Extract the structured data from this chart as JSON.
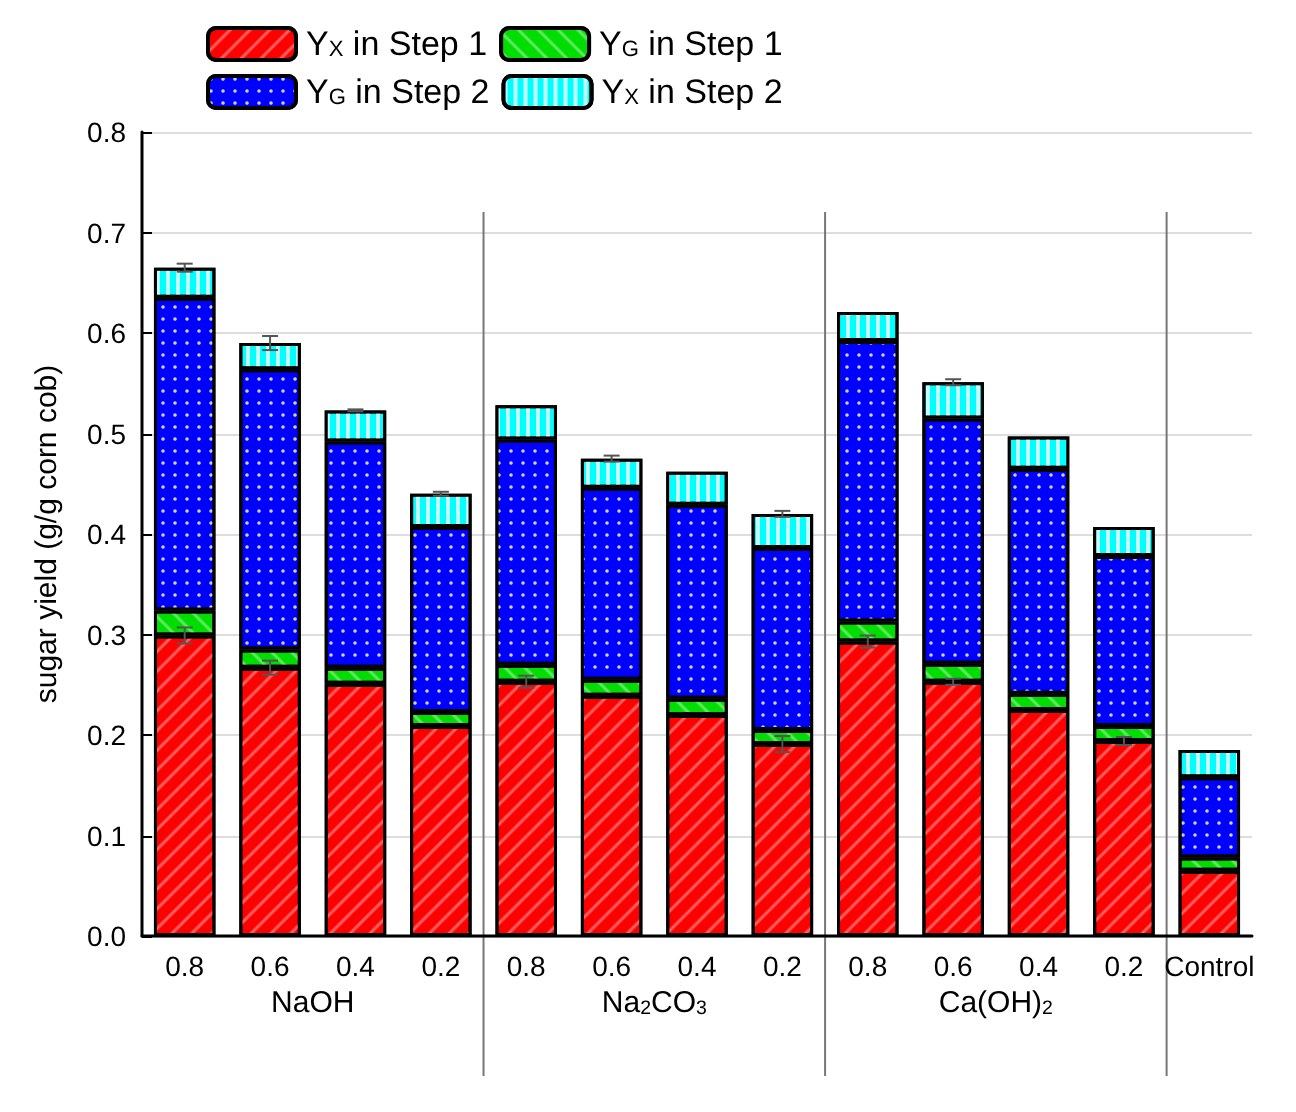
{
  "chart_data": {
    "type": "bar",
    "stacked": true,
    "ylabel": "sugar yield (g/g corn cob)",
    "categories": [
      "0.8",
      "0.6",
      "0.4",
      "0.2",
      "0.8",
      "0.6",
      "0.4",
      "0.2",
      "0.8",
      "0.6",
      "0.4",
      "0.2",
      "Control"
    ],
    "annotations": [
      "NaOH",
      "Na$_{2}$CO$_{3}$",
      "Ca(OH)$_{2}$"
    ],
    "series": [
      {
        "name": "Y$_{X}$ in Step 1",
        "color": "#ff0000",
        "values": [
          0.299,
          0.267,
          0.251,
          0.209,
          0.253,
          0.239,
          0.22,
          0.191,
          0.293,
          0.253,
          0.225,
          0.194,
          0.065
        ],
        "errors": [
          0.008,
          0.007,
          null,
          null,
          0.006,
          null,
          null,
          0.008,
          0.006,
          0.003,
          null,
          0.004,
          null
        ]
      },
      {
        "name": "Y$_{G}$ in Step 1",
        "color": "#00dd00",
        "values": [
          0.025,
          0.018,
          0.016,
          0.014,
          0.017,
          0.016,
          0.016,
          0.014,
          0.02,
          0.018,
          0.016,
          0.015,
          0.013
        ]
      },
      {
        "name": "Y$_{G}$ in Step 2",
        "color": "#0000ff",
        "values": [
          0.311,
          0.279,
          0.225,
          0.184,
          0.224,
          0.191,
          0.193,
          0.181,
          0.279,
          0.244,
          0.224,
          0.169,
          0.08
        ]
      },
      {
        "name": "Y$_{X}$ in Step 2",
        "color": "#00ffff",
        "values": [
          0.03,
          0.026,
          0.031,
          0.033,
          0.034,
          0.029,
          0.033,
          0.034,
          0.029,
          0.036,
          0.032,
          0.029,
          0.027
        ],
        "errors": [
          0.004,
          0.007,
          0.001,
          0.002,
          null,
          0.003,
          null,
          0.003,
          null,
          0.003,
          null,
          null,
          null
        ]
      }
    ],
    "ylim": [
      0,
      0.8
    ],
    "yticks": [
      {
        "value": 0,
        "label": "0.0"
      },
      {
        "value": 0.1,
        "label": "0.1"
      },
      {
        "value": 0.2,
        "label": "0.2"
      },
      {
        "value": 0.3,
        "label": "0.3"
      },
      {
        "value": 0.4,
        "label": "0.4"
      },
      {
        "value": 0.5,
        "label": "0.5"
      },
      {
        "value": 0.6,
        "label": "0.6"
      },
      {
        "value": 0.7,
        "label": "0.7"
      },
      {
        "value": 0.8,
        "label": "0.8"
      }
    ],
    "grid": "y",
    "legend": "top left"
  }
}
